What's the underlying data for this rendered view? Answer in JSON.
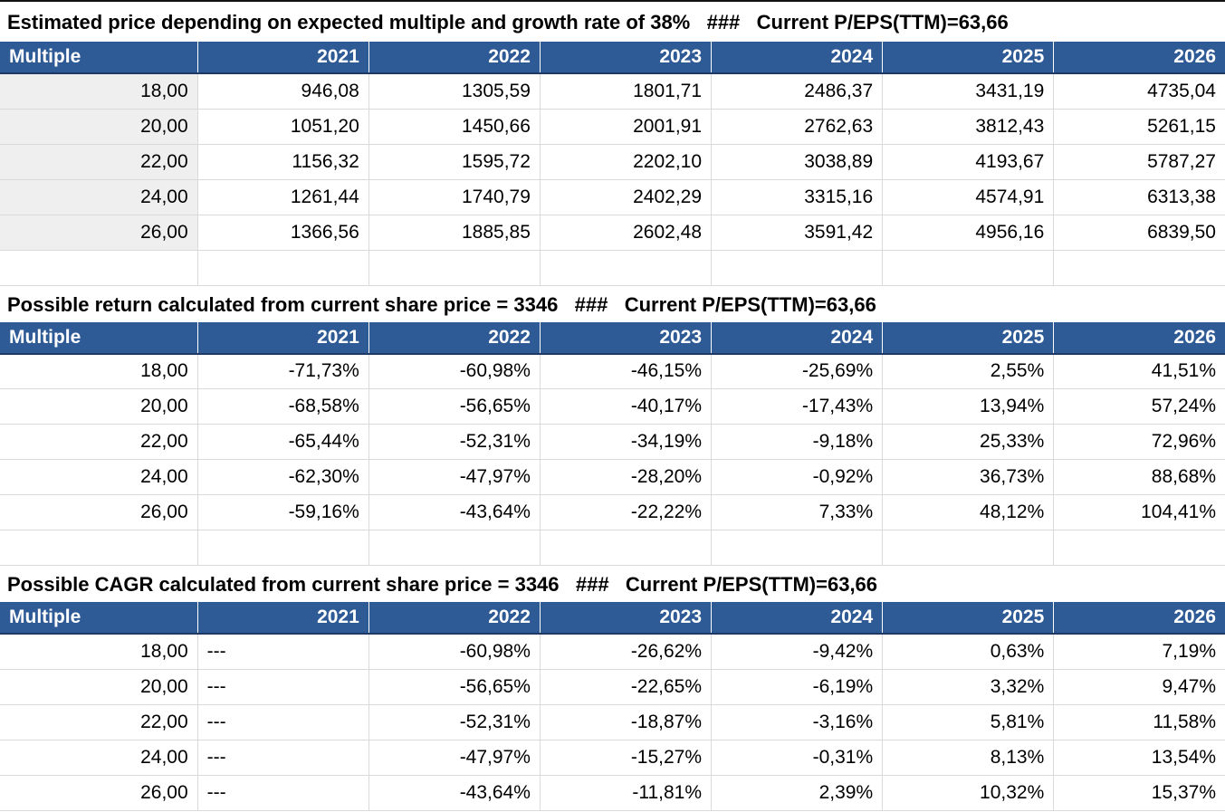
{
  "colors": {
    "header_bg": "#2e5a96",
    "header_border": "#1f3864",
    "grid": "#d9d9d9",
    "label_column_bg": "#efefef",
    "top_border": "#111111"
  },
  "columns": [
    "Multiple",
    "2021",
    "2022",
    "2023",
    "2024",
    "2025",
    "2026"
  ],
  "sections": [
    {
      "title": "Estimated price depending on expected multiple and growth rate of 38%   ###   Current P/EPS(TTM)=63,66",
      "label_col_shaded": true,
      "spacer_row": true,
      "rows": [
        [
          "18,00",
          "946,08",
          "1305,59",
          "1801,71",
          "2486,37",
          "3431,19",
          "4735,04"
        ],
        [
          "20,00",
          "1051,20",
          "1450,66",
          "2001,91",
          "2762,63",
          "3812,43",
          "5261,15"
        ],
        [
          "22,00",
          "1156,32",
          "1595,72",
          "2202,10",
          "3038,89",
          "4193,67",
          "5787,27"
        ],
        [
          "24,00",
          "1261,44",
          "1740,79",
          "2402,29",
          "3315,16",
          "4574,91",
          "6313,38"
        ],
        [
          "26,00",
          "1366,56",
          "1885,85",
          "2602,48",
          "3591,42",
          "4956,16",
          "6839,50"
        ]
      ]
    },
    {
      "title": "Possible return calculated from current share price = 3346   ###   Current P/EPS(TTM)=63,66",
      "label_col_shaded": false,
      "spacer_row": true,
      "rows": [
        [
          "18,00",
          "-71,73%",
          "-60,98%",
          "-46,15%",
          "-25,69%",
          "2,55%",
          "41,51%"
        ],
        [
          "20,00",
          "-68,58%",
          "-56,65%",
          "-40,17%",
          "-17,43%",
          "13,94%",
          "57,24%"
        ],
        [
          "22,00",
          "-65,44%",
          "-52,31%",
          "-34,19%",
          "-9,18%",
          "25,33%",
          "72,96%"
        ],
        [
          "24,00",
          "-62,30%",
          "-47,97%",
          "-28,20%",
          "-0,92%",
          "36,73%",
          "88,68%"
        ],
        [
          "26,00",
          "-59,16%",
          "-43,64%",
          "-22,22%",
          "7,33%",
          "48,12%",
          "104,41%"
        ]
      ]
    },
    {
      "title": "Possible CAGR calculated from current share price = 3346   ###   Current P/EPS(TTM)=63,66",
      "label_col_shaded": false,
      "spacer_row": false,
      "rows": [
        [
          "18,00",
          "---",
          "-60,98%",
          "-26,62%",
          "-9,42%",
          "0,63%",
          "7,19%"
        ],
        [
          "20,00",
          "---",
          "-56,65%",
          "-22,65%",
          "-6,19%",
          "3,32%",
          "9,47%"
        ],
        [
          "22,00",
          "---",
          "-52,31%",
          "-18,87%",
          "-3,16%",
          "5,81%",
          "11,58%"
        ],
        [
          "24,00",
          "---",
          "-47,97%",
          "-15,27%",
          "-0,31%",
          "8,13%",
          "13,54%"
        ],
        [
          "26,00",
          "---",
          "-43,64%",
          "-11,81%",
          "2,39%",
          "10,32%",
          "15,37%"
        ]
      ]
    }
  ]
}
